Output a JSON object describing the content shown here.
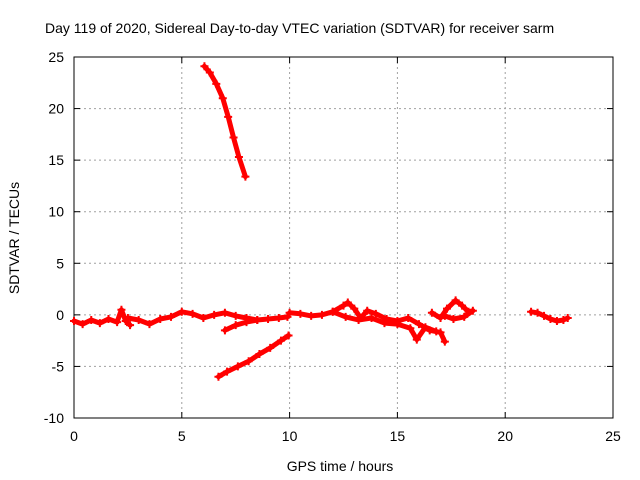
{
  "chart_data": {
    "type": "scatter",
    "title": "Day 119 of 2020, Sidereal Day-to-day VTEC variation (SDTVAR) for receiver sarm",
    "xlabel": "GPS time / hours",
    "ylabel": "SDTVAR / TECUs",
    "xlim": [
      0,
      25
    ],
    "ylim": [
      -10,
      25
    ],
    "xticks": [
      0,
      5,
      10,
      15,
      20,
      25
    ],
    "yticks": [
      -10,
      -5,
      0,
      5,
      10,
      15,
      20,
      25
    ],
    "xtick_labels": [
      "0",
      "5",
      "10",
      "15",
      "20",
      "25"
    ],
    "ytick_labels": [
      "-10",
      "-5",
      "0",
      "5",
      "10",
      "15",
      "20",
      "25"
    ],
    "grid": true,
    "marker": "+",
    "color": "#ff0000",
    "series": [
      {
        "name": "arc-high",
        "points": [
          [
            6.05,
            24.1
          ],
          [
            6.3,
            23.5
          ],
          [
            6.6,
            22.4
          ],
          [
            6.9,
            21.0
          ],
          [
            7.15,
            19.2
          ],
          [
            7.4,
            17.2
          ],
          [
            7.65,
            15.3
          ],
          [
            7.95,
            13.4
          ]
        ]
      },
      {
        "name": "arc-low",
        "points": [
          [
            6.7,
            -6.0
          ],
          [
            7.1,
            -5.5
          ],
          [
            7.6,
            -5.0
          ],
          [
            8.1,
            -4.5
          ],
          [
            8.6,
            -3.8
          ],
          [
            9.1,
            -3.2
          ],
          [
            9.6,
            -2.5
          ],
          [
            9.95,
            -2.0
          ]
        ]
      },
      {
        "name": "arc-early",
        "points": [
          [
            0.0,
            -0.6
          ],
          [
            0.4,
            -0.9
          ],
          [
            0.8,
            -0.5
          ],
          [
            1.2,
            -0.8
          ],
          [
            1.6,
            -0.4
          ],
          [
            2.0,
            -0.7
          ],
          [
            2.2,
            0.5
          ],
          [
            2.4,
            -0.6
          ],
          [
            2.6,
            -1.0
          ]
        ]
      },
      {
        "name": "arc-morning",
        "points": [
          [
            2.5,
            -0.3
          ],
          [
            3.0,
            -0.5
          ],
          [
            3.5,
            -0.9
          ],
          [
            4.0,
            -0.4
          ],
          [
            4.5,
            -0.2
          ],
          [
            5.0,
            0.3
          ],
          [
            5.5,
            0.1
          ],
          [
            6.0,
            -0.3
          ],
          [
            6.5,
            0.0
          ],
          [
            7.0,
            0.2
          ],
          [
            7.5,
            -0.1
          ],
          [
            8.0,
            -0.3
          ],
          [
            8.5,
            -0.5
          ],
          [
            9.0,
            -0.4
          ],
          [
            9.5,
            -0.3
          ],
          [
            9.9,
            -0.2
          ]
        ]
      },
      {
        "name": "arc-dip",
        "points": [
          [
            7.0,
            -1.5
          ],
          [
            7.5,
            -1.0
          ],
          [
            8.0,
            -0.7
          ],
          [
            8.5,
            -0.5
          ]
        ]
      },
      {
        "name": "arc-midday",
        "points": [
          [
            10.0,
            0.2
          ],
          [
            10.5,
            0.1
          ],
          [
            11.0,
            -0.1
          ],
          [
            11.5,
            0.0
          ],
          [
            12.0,
            0.3
          ],
          [
            12.5,
            0.9
          ],
          [
            12.7,
            1.2
          ],
          [
            13.0,
            0.6
          ],
          [
            13.3,
            -0.3
          ],
          [
            13.6,
            0.4
          ],
          [
            14.0,
            0.1
          ],
          [
            14.5,
            -0.4
          ],
          [
            15.0,
            -0.6
          ],
          [
            15.5,
            -0.3
          ],
          [
            16.0,
            -0.9
          ],
          [
            16.5,
            -1.5
          ],
          [
            17.0,
            -1.7
          ],
          [
            17.2,
            -2.6
          ]
        ]
      },
      {
        "name": "arc-crossing",
        "points": [
          [
            12.0,
            0.3
          ],
          [
            12.6,
            -0.2
          ],
          [
            13.2,
            -0.5
          ],
          [
            13.8,
            -0.3
          ],
          [
            14.4,
            -0.8
          ],
          [
            15.0,
            -0.9
          ],
          [
            15.6,
            -1.3
          ],
          [
            15.9,
            -2.4
          ],
          [
            16.3,
            -1.2
          ],
          [
            16.8,
            -1.6
          ]
        ]
      },
      {
        "name": "arc-afternoon",
        "points": [
          [
            16.6,
            0.2
          ],
          [
            17.0,
            -0.3
          ],
          [
            17.3,
            0.6
          ],
          [
            17.7,
            1.4
          ],
          [
            18.0,
            0.9
          ],
          [
            18.3,
            0.3
          ],
          [
            18.5,
            0.4
          ],
          [
            18.1,
            -0.2
          ],
          [
            17.6,
            -0.4
          ],
          [
            17.2,
            -0.1
          ]
        ]
      },
      {
        "name": "arc-late",
        "points": [
          [
            21.2,
            0.3
          ],
          [
            21.5,
            0.2
          ],
          [
            21.8,
            -0.1
          ],
          [
            22.1,
            -0.4
          ],
          [
            22.4,
            -0.6
          ],
          [
            22.7,
            -0.5
          ],
          [
            22.9,
            -0.3
          ]
        ]
      }
    ]
  }
}
